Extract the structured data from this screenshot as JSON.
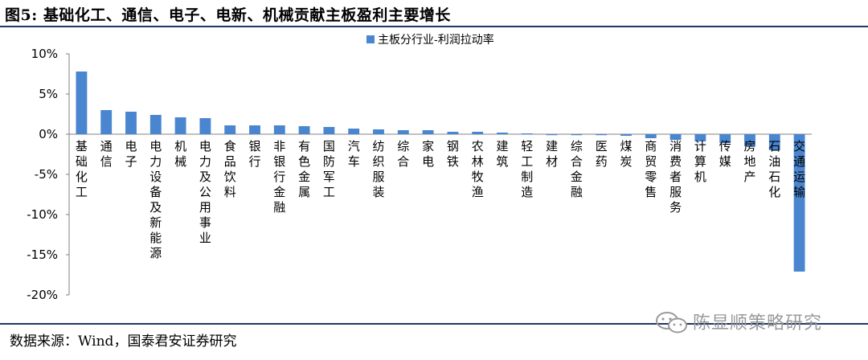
{
  "header": {
    "title": "图5:  基础化工、通信、电子、电新、机械贡献主板盈利主要增长"
  },
  "source": "数据来源：Wind，国泰君安证券研究",
  "watermark": {
    "text": "陈显顺策略研究",
    "icon": "wechat-icon"
  },
  "colors": {
    "bar": "#4a86cf",
    "rule": "#1f3864",
    "axis": "#808080"
  },
  "chart_data": {
    "type": "bar",
    "title": "",
    "xlabel": "",
    "ylabel": "",
    "ylim": [
      -20,
      10
    ],
    "y_ticks": [
      10,
      5,
      0,
      -5,
      -10,
      -15,
      -20
    ],
    "y_tick_labels": [
      "10%",
      "5%",
      "0%",
      "-5%",
      "-10%",
      "-15%",
      "-20%"
    ],
    "grid": false,
    "legend_position": "top-center",
    "categories": [
      "基础化工",
      "通信",
      "电子",
      "电力设备及新能源",
      "机械",
      "电力及公用事业",
      "食品饮料",
      "银行",
      "非银行金融",
      "有色金属",
      "国防军工",
      "汽车",
      "纺织服装",
      "综合",
      "家电",
      "钢铁",
      "农林牧渔",
      "建筑",
      "轻工制造",
      "建材",
      "综合金融",
      "医药",
      "煤炭",
      "商贸零售",
      "消费者服务",
      "计算机",
      "传媒",
      "房地产",
      "石油石化",
      "交通运输"
    ],
    "series": [
      {
        "name": "主板分行业-利润拉动率",
        "values": [
          7.8,
          3.0,
          2.8,
          2.4,
          2.1,
          2.0,
          1.1,
          1.1,
          1.1,
          1.0,
          0.9,
          0.7,
          0.6,
          0.5,
          0.5,
          0.3,
          0.3,
          0.2,
          0.1,
          -0.1,
          -0.1,
          -0.1,
          -0.2,
          -0.5,
          -0.7,
          -0.9,
          -1.1,
          -1.5,
          -2.0,
          -17.1
        ]
      }
    ]
  }
}
